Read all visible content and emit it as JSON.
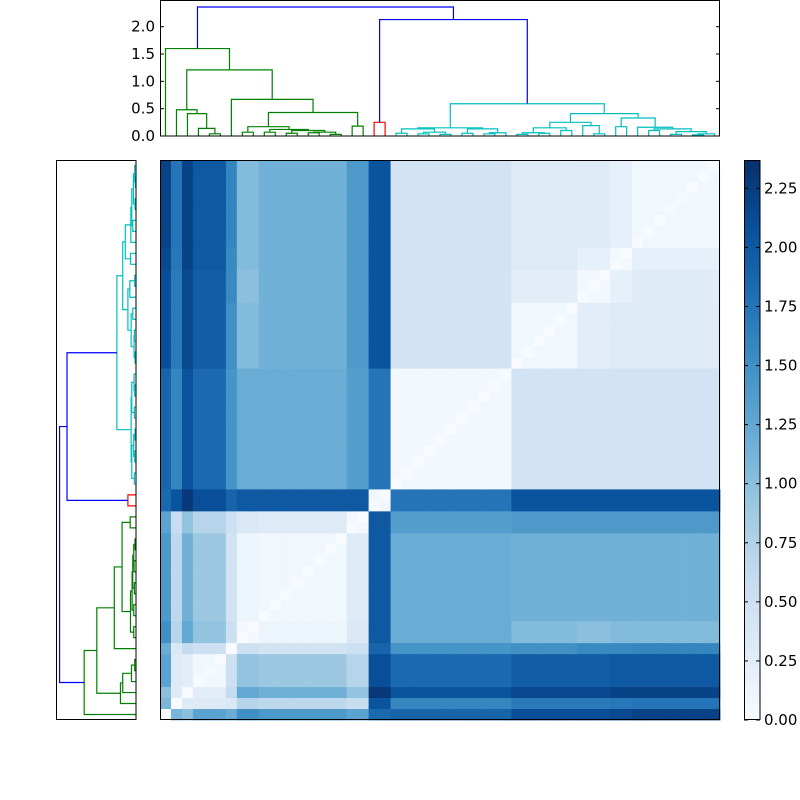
{
  "chart_data": [
    {
      "type": "heatmap",
      "leaf_count": 51,
      "row_order": "reversed",
      "colormap": "Blues",
      "diagonal_value": 0,
      "groups": [
        {
          "leaves": [
            0,
            0
          ]
        },
        {
          "leaves": [
            1,
            1
          ]
        },
        {
          "leaves": [
            2,
            2
          ]
        },
        {
          "leaves": [
            3,
            5
          ]
        },
        {
          "leaves": [
            6,
            6
          ]
        },
        {
          "leaves": [
            7,
            8
          ]
        },
        {
          "leaves": [
            9,
            16
          ]
        },
        {
          "leaves": [
            17,
            18
          ]
        },
        {
          "leaves": [
            19,
            20
          ]
        },
        {
          "leaves": [
            21,
            31
          ]
        },
        {
          "leaves": [
            32,
            37
          ]
        },
        {
          "leaves": [
            38,
            40
          ]
        },
        {
          "leaves": [
            41,
            42
          ]
        },
        {
          "leaves": [
            43,
            50
          ]
        }
      ],
      "group_distance": [
        [
          0.0,
          1.1,
          1.0,
          1.3,
          1.2,
          1.5,
          1.4,
          1.3,
          1.85,
          1.9,
          2.1,
          2.1,
          2.15,
          2.2
        ],
        [
          1.1,
          0.0,
          0.3,
          0.3,
          0.35,
          0.7,
          0.65,
          0.55,
          2.05,
          1.6,
          1.7,
          1.7,
          1.72,
          1.75
        ],
        [
          1.0,
          0.3,
          0.0,
          0.25,
          0.6,
          1.25,
          1.15,
          0.95,
          2.3,
          2.05,
          2.15,
          2.15,
          2.2,
          2.2
        ],
        [
          1.3,
          0.3,
          0.25,
          0.08,
          0.5,
          0.95,
          0.9,
          0.7,
          2.1,
          1.85,
          1.95,
          1.95,
          2.0,
          2.0
        ],
        [
          1.2,
          0.35,
          0.6,
          0.5,
          0.0,
          0.5,
          0.45,
          0.5,
          1.9,
          1.45,
          1.5,
          1.55,
          1.55,
          1.6
        ],
        [
          1.5,
          0.7,
          1.25,
          0.95,
          0.5,
          0.06,
          0.12,
          0.35,
          2.0,
          1.2,
          1.05,
          1.0,
          1.05,
          1.05
        ],
        [
          1.4,
          0.65,
          1.15,
          0.9,
          0.45,
          0.12,
          0.08,
          0.3,
          2.0,
          1.2,
          1.15,
          1.15,
          1.15,
          1.15
        ],
        [
          1.3,
          0.55,
          0.95,
          0.7,
          0.5,
          0.35,
          0.3,
          0.05,
          2.0,
          1.35,
          1.4,
          1.4,
          1.4,
          1.4
        ],
        [
          1.85,
          2.05,
          2.3,
          2.1,
          1.9,
          2.0,
          2.0,
          2.0,
          0.1,
          1.75,
          2.05,
          2.05,
          2.05,
          2.05
        ],
        [
          1.9,
          1.6,
          2.05,
          1.85,
          1.45,
          1.2,
          1.2,
          1.35,
          1.75,
          0.06,
          0.45,
          0.45,
          0.45,
          0.45
        ],
        [
          2.1,
          1.7,
          2.15,
          1.95,
          1.5,
          1.05,
          1.15,
          1.4,
          2.05,
          0.45,
          0.08,
          0.25,
          0.3,
          0.3
        ],
        [
          2.1,
          1.7,
          2.15,
          1.95,
          1.55,
          1.0,
          1.15,
          1.4,
          2.05,
          0.45,
          0.25,
          0.06,
          0.2,
          0.28
        ],
        [
          2.15,
          1.72,
          2.2,
          2.0,
          1.55,
          1.05,
          1.15,
          1.4,
          2.05,
          0.45,
          0.3,
          0.2,
          0.05,
          0.2
        ],
        [
          2.2,
          1.75,
          2.2,
          2.0,
          1.6,
          1.05,
          1.15,
          1.4,
          2.05,
          0.45,
          0.3,
          0.28,
          0.2,
          0.08
        ]
      ],
      "colorbar": {
        "range": [
          0,
          2.37
        ],
        "ticks": [
          0,
          0.25,
          0.5,
          0.75,
          1.0,
          1.25,
          1.5,
          1.75,
          2.0,
          2.25
        ],
        "tick_labels": [
          "0.00",
          "0.25",
          "0.50",
          "0.75",
          "1.00",
          "1.25",
          "1.50",
          "1.75",
          "2.00",
          "2.25"
        ],
        "colors": [
          "#f7fbff",
          "#deebf7",
          "#c6dbef",
          "#9ecae1",
          "#6baed6",
          "#4292c6",
          "#2171b5",
          "#08519c",
          "#08306b"
        ]
      }
    },
    {
      "type": "dendrogram",
      "orientation": "top",
      "ylim": [
        0,
        2.47
      ],
      "yticks": [
        0,
        0.5,
        1.0,
        1.5,
        2.0
      ],
      "ytick_labels": [
        "0.0",
        "0.5",
        "1.0",
        "1.5",
        "2.0"
      ],
      "above_threshold_color": "#0000ff",
      "clusters": [
        {
          "leaves": [
            0,
            18
          ],
          "color": "#008000"
        },
        {
          "leaves": [
            19,
            20
          ],
          "color": "#ff0000"
        },
        {
          "leaves": [
            21,
            50
          ],
          "color": "#00bfbf"
        }
      ],
      "tree": [
        [
          0,
          [
            [
              1,
              [
                2,
                [
                  3,
                  [
                    4,
                    5,
                    0.04
                  ],
                  0.14
                ],
                0.41
              ],
              0.48
            ],
            [
              6,
              [
                [
                  [
                    7,
                    8,
                    0.07
                  ],
                  [
                    [
                      9,
                      10,
                      0.07
                    ],
                    [
                      [
                        11,
                        12,
                        0.05
                      ],
                      [
                        [
                          13,
                          14,
                          0.06
                        ],
                        [
                          15,
                          16,
                          0.03
                        ],
                        0.07
                      ],
                      0.1
                    ],
                    0.12
                  ],
                  0.17
                ],
                [
                  17,
                  18,
                  0.18
                ],
                0.43
              ],
              0.67
            ],
            1.21
          ],
          1.6
        ],
        [
          [
            19,
            20,
            0.25
          ],
          [
            [
              [
                [
                  21,
                  22,
                  0.05
                ],
                [
                  [
                    23,
                    24,
                    0.04
                  ],
                  [
                    25,
                    26,
                    0.03
                  ],
                  0.07
                ],
                0.13
              ],
              [
                [
                  27,
                  28,
                  0.05
                ],
                [
                  [
                    29,
                    30,
                    0.04
                  ],
                  31,
                  0.06
                ],
                0.13
              ],
              0.15
            ],
            [
              [
                [
                  [
                    [
                      32,
                      33,
                      0.03
                    ],
                    [
                      34,
                      35,
                      0.05
                    ],
                    0.06
                  ],
                  [
                    36,
                    37,
                    0.1
                  ],
                  0.15
                ],
                [
                  38,
                  [
                    39,
                    40,
                    0.04
                  ],
                  0.19
                ],
                0.25
              ],
              [
                [
                  41,
                  42,
                  0.17
                ],
                [
                  43,
                  [
                    [
                      44,
                      45,
                      0.1
                    ],
                    [
                      [
                        46,
                        47,
                        0.03
                      ],
                      [
                        [
                          48,
                          49,
                          0.02
                        ],
                        50,
                        0.04
                      ],
                      0.08
                    ],
                    0.13
                  ],
                  0.16
                ],
                0.33
              ],
              0.41
            ],
            0.59
          ],
          2.13
        ],
        2.36
      ]
    },
    {
      "type": "dendrogram",
      "orientation": "left",
      "xlim": [
        2.47,
        0
      ],
      "same_tree_as_top": true
    }
  ]
}
